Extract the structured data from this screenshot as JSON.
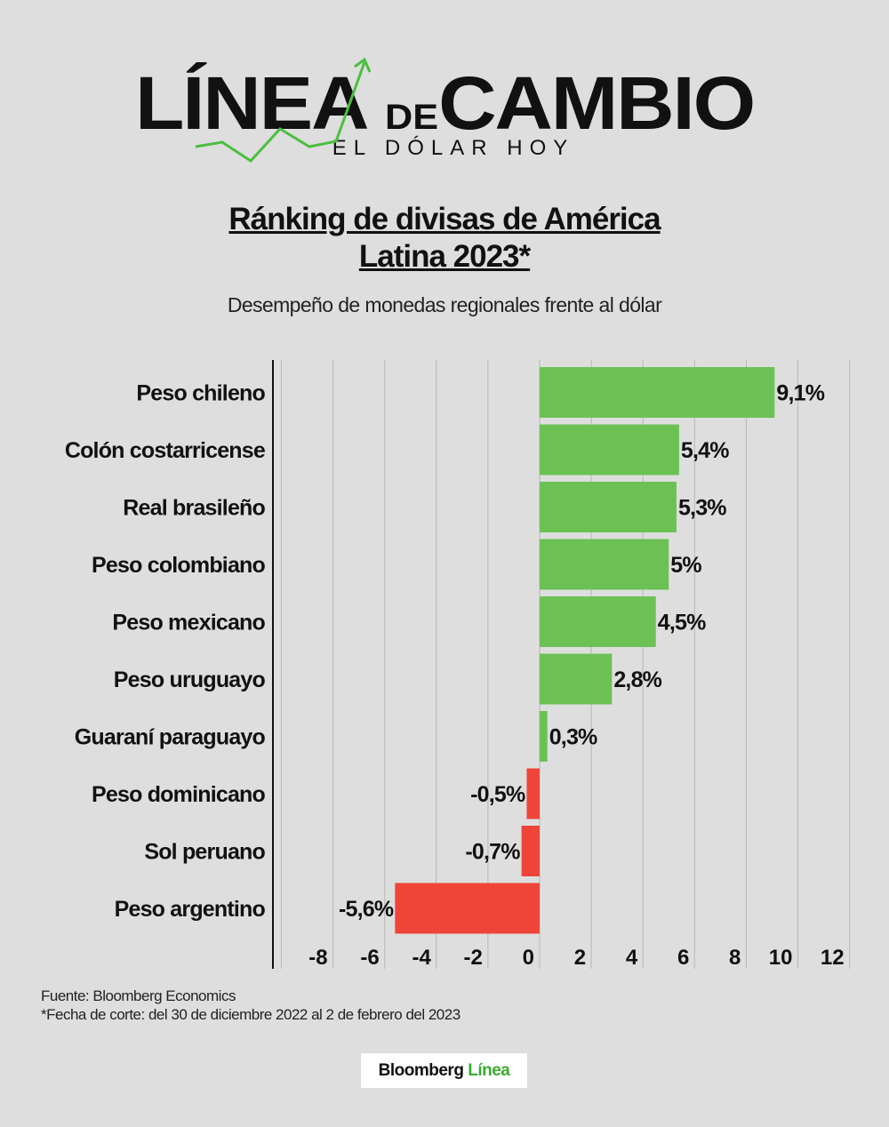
{
  "logo": {
    "main_left": "LÍNEA",
    "main_de": "DE",
    "main_right": "CAMBIO",
    "sub": "EL DÓLAR HOY",
    "arrow_color": "#4cbf3f"
  },
  "title_line1": "Ránking de divisas de América",
  "title_line2": "Latina 2023*",
  "subtitle": "Desempeño de monedas regionales frente al dólar",
  "chart_data": {
    "type": "bar",
    "orientation": "horizontal",
    "categories": [
      "Peso chileno",
      "Colón costarricense",
      "Real brasileño",
      "Peso colombiano",
      "Peso mexicano",
      "Peso uruguayo",
      "Guaraní paraguayo",
      "Peso dominicano",
      "Sol peruano",
      "Peso argentino"
    ],
    "values": [
      9.1,
      5.4,
      5.3,
      5,
      4.5,
      2.8,
      0.3,
      -0.5,
      -0.7,
      -5.6
    ],
    "data_labels": [
      "9,1%",
      "5,4%",
      "5,3%",
      "5%",
      "4,5%",
      "2,8%",
      "0,3%",
      "-0,5%",
      "-0,7%",
      "-5,6%"
    ],
    "xticks": [
      -8,
      -6,
      -4,
      -2,
      0,
      2,
      4,
      6,
      8,
      10,
      12
    ],
    "xlim": [
      -10.3,
      12
    ],
    "grid": true,
    "colors": {
      "positive": "#6cc155",
      "negative": "#ef4538"
    }
  },
  "notes": {
    "source": "Fuente: Bloomberg Economics",
    "cutoff": "*Fecha de corte: del 30 de diciembre 2022 al 2 de febrero del 2023"
  },
  "brand": {
    "part1": "Bloomberg",
    "part2": "Línea"
  }
}
